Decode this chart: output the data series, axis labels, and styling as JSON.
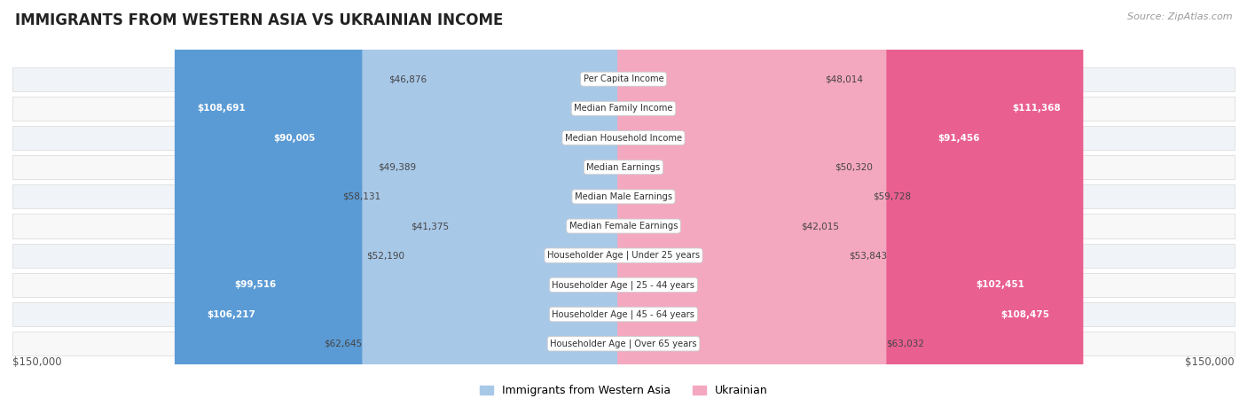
{
  "title": "IMMIGRANTS FROM WESTERN ASIA VS UKRAINIAN INCOME",
  "source": "Source: ZipAtlas.com",
  "categories": [
    "Per Capita Income",
    "Median Family Income",
    "Median Household Income",
    "Median Earnings",
    "Median Male Earnings",
    "Median Female Earnings",
    "Householder Age | Under 25 years",
    "Householder Age | 25 - 44 years",
    "Householder Age | 45 - 64 years",
    "Householder Age | Over 65 years"
  ],
  "left_values": [
    46876,
    108691,
    90005,
    49389,
    58131,
    41375,
    52190,
    99516,
    106217,
    62645
  ],
  "right_values": [
    48014,
    111368,
    91456,
    50320,
    59728,
    42015,
    53843,
    102451,
    108475,
    63032
  ],
  "left_labels": [
    "$46,876",
    "$108,691",
    "$90,005",
    "$49,389",
    "$58,131",
    "$41,375",
    "$52,190",
    "$99,516",
    "$106,217",
    "$62,645"
  ],
  "right_labels": [
    "$48,014",
    "$111,368",
    "$91,456",
    "$50,320",
    "$59,728",
    "$42,015",
    "$53,843",
    "$102,451",
    "$108,475",
    "$63,032"
  ],
  "left_color_light": "#a8c8e8",
  "left_color_solid": "#5b9bd5",
  "right_color_light": "#f4a8c0",
  "right_color_solid": "#e96090",
  "threshold": 80000,
  "max_val": 150000,
  "legend_left": "Immigrants from Western Asia",
  "legend_right": "Ukrainian"
}
